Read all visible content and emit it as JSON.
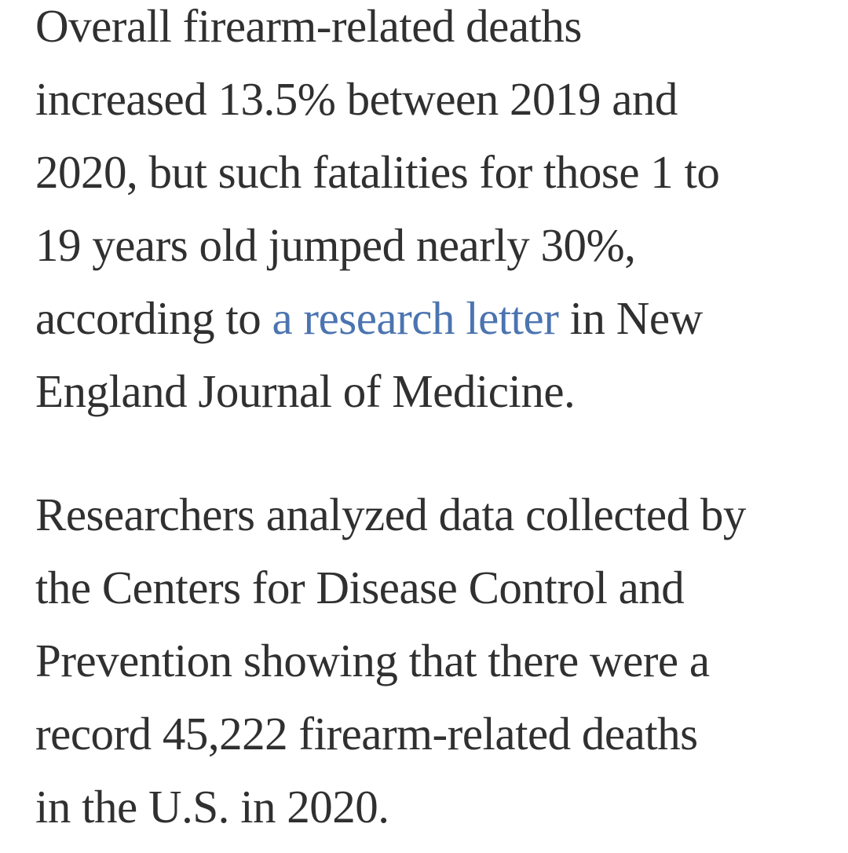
{
  "page": {
    "background": "#ffffff"
  },
  "colors": {
    "text": "#303030",
    "link": "#4b74b0"
  },
  "article": {
    "paragraphs": [
      {
        "segments": [
          {
            "type": "text",
            "text": "Overall firearm-related deaths\nincreased 13.5% between 2019 and\n2020, but such fatalities for those 1 to\n19 years old jumped nearly 30%,\naccording to "
          },
          {
            "type": "link",
            "name": "research-letter-link",
            "text": "a research letter"
          },
          {
            "type": "text",
            "text": " in New\nEngland Journal of Medicine."
          }
        ]
      },
      {
        "segments": [
          {
            "type": "text",
            "text": "Researchers analyzed data collected by\nthe Centers for Disease Control and\nPrevention showing that there were a\nrecord 45,222 firearm-related deaths\nin the U.S. in 2020."
          }
        ]
      }
    ]
  }
}
